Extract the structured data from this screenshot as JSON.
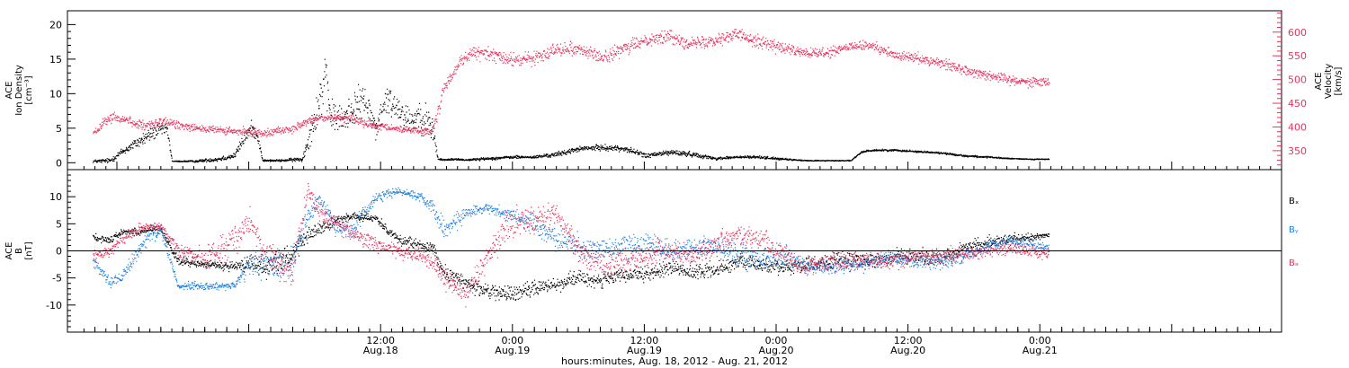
{
  "chart_data": [
    {
      "type": "scatter",
      "panel": "top",
      "ylabel_left": [
        "ACE",
        "Ion Density",
        "[cm⁻³]"
      ],
      "ylabel_right": [
        "ACE",
        "Velocity",
        "[km/s]"
      ],
      "left_ticks": [
        "0",
        "5",
        "10",
        "15",
        "20"
      ],
      "right_ticks": [
        "350",
        "400",
        "450",
        "500",
        "550",
        "600"
      ],
      "ylim_left": [
        -1,
        22
      ],
      "ylim_right": [
        310,
        645
      ],
      "series": [
        {
          "color": "#000000",
          "x": [
            0,
            3,
            5,
            7,
            9,
            11,
            13,
            14,
            15,
            18,
            22,
            25,
            27,
            28,
            29,
            30,
            33,
            37,
            40,
            41,
            42,
            44,
            46,
            48,
            50,
            52,
            54,
            56,
            58,
            60,
            61,
            62,
            64,
            66,
            70,
            74,
            78,
            82,
            86,
            90,
            94,
            98,
            102,
            106,
            110,
            114,
            118,
            122,
            126,
            130,
            134,
            136,
            138,
            142,
            146,
            150,
            154,
            158,
            162,
            166,
            169
          ],
          "y": [
            0.2,
            0.3,
            1.5,
            2.5,
            3.5,
            4.5,
            5.0,
            0.2,
            0.2,
            0.2,
            0.5,
            1.0,
            4.0,
            5.0,
            4.0,
            0.3,
            0.3,
            0.5,
            9.0,
            12,
            7.0,
            6.0,
            8.0,
            9.0,
            5.0,
            9.0,
            8.0,
            6.0,
            7.0,
            5.0,
            0.5,
            0.4,
            0.5,
            0.4,
            0.6,
            0.8,
            0.8,
            1.2,
            2.0,
            2.2,
            2.0,
            1.0,
            1.5,
            1.2,
            0.6,
            0.8,
            0.8,
            0.5,
            0.3,
            0.3,
            0.3,
            1.6,
            1.8,
            1.8,
            1.6,
            1.4,
            1.0,
            0.8,
            0.6,
            0.5,
            0.5
          ],
          "spread": [
            0.3,
            0.5,
            0.8,
            1.0,
            1.5,
            1.5,
            1.5,
            0.1,
            0.1,
            0.2,
            0.5,
            0.6,
            1.5,
            1.5,
            1.2,
            0.2,
            0.2,
            0.5,
            5.0,
            5.0,
            3.5,
            3.0,
            3.5,
            3.5,
            3.0,
            3.5,
            3.0,
            3.0,
            3.5,
            3.0,
            0.4,
            0.2,
            0.2,
            0.2,
            0.3,
            0.3,
            0.3,
            0.5,
            0.5,
            0.6,
            0.6,
            0.5,
            0.6,
            0.5,
            0.3,
            0.3,
            0.3,
            0.2,
            0.1,
            0.1,
            0.1,
            0.2,
            0.2,
            0.2,
            0.2,
            0.2,
            0.2,
            0.2,
            0.1,
            0.1,
            0.1
          ]
        },
        {
          "color": "#e8335e",
          "x": [
            0,
            3,
            6,
            9,
            12,
            15,
            20,
            25,
            30,
            35,
            40,
            45,
            50,
            55,
            60,
            61,
            62,
            63,
            65,
            67,
            70,
            74,
            78,
            82,
            86,
            90,
            94,
            98,
            102,
            106,
            110,
            114,
            118,
            122,
            126,
            130,
            134,
            138,
            142,
            146,
            150,
            154,
            158,
            162,
            166,
            169
          ],
          "y": [
            385,
            420,
            415,
            400,
            410,
            405,
            395,
            390,
            388,
            395,
            420,
            420,
            400,
            395,
            390,
            430,
            480,
            500,
            540,
            555,
            555,
            540,
            545,
            565,
            565,
            545,
            565,
            585,
            590,
            575,
            585,
            595,
            580,
            565,
            555,
            555,
            570,
            570,
            550,
            545,
            535,
            520,
            510,
            500,
            495,
            495
          ],
          "spread": [
            15,
            15,
            15,
            15,
            15,
            15,
            12,
            12,
            12,
            12,
            12,
            12,
            12,
            12,
            12,
            20,
            20,
            15,
            20,
            20,
            20,
            20,
            20,
            20,
            20,
            20,
            20,
            20,
            20,
            20,
            20,
            20,
            20,
            20,
            15,
            15,
            15,
            15,
            15,
            15,
            15,
            15,
            15,
            15,
            15,
            15
          ]
        }
      ]
    },
    {
      "type": "scatter",
      "panel": "bottom",
      "ylabel_left": [
        "ACE",
        "B",
        "[nT]"
      ],
      "left_ticks": [
        "-10",
        "-5",
        "0",
        "5",
        "10"
      ],
      "ylim": [
        -15,
        15
      ],
      "legend": [
        "Bₓ",
        "Bᵧ",
        "Bₔ"
      ],
      "series": [
        {
          "name": "Bₓ",
          "color": "#000000",
          "x": [
            0,
            3,
            5,
            8,
            10,
            12,
            15,
            20,
            25,
            28,
            30,
            35,
            38,
            40,
            43,
            46,
            50,
            54,
            58,
            60,
            62,
            66,
            70,
            74,
            78,
            82,
            86,
            90,
            94,
            98,
            102,
            106,
            110,
            114,
            118,
            122,
            126,
            130,
            134,
            138,
            142,
            146,
            150,
            154,
            158,
            162,
            166,
            169
          ],
          "y": [
            2.5,
            2.0,
            3.5,
            3.5,
            4.0,
            4.0,
            -2.0,
            -2.5,
            -3.0,
            -2.0,
            -3.0,
            -1.0,
            3.0,
            4.0,
            5.5,
            6.5,
            6.0,
            2.0,
            1.0,
            0.5,
            -4.0,
            -6.0,
            -7.5,
            -8.0,
            -7.0,
            -6.0,
            -5.0,
            -5.5,
            -4.5,
            -4.5,
            -3.0,
            -4.0,
            -3.5,
            -2.0,
            -2.5,
            -3.0,
            -2.5,
            -2.0,
            -1.5,
            -2.0,
            -1.0,
            -1.0,
            -1.5,
            0.5,
            1.5,
            2.0,
            2.5,
            3.0
          ],
          "spread": [
            1.0,
            1.0,
            1.0,
            1.0,
            1.0,
            1.0,
            1.2,
            1.2,
            1.2,
            2.5,
            3.0,
            3.0,
            2.0,
            2.0,
            1.2,
            1.0,
            1.0,
            1.5,
            1.5,
            1.5,
            2.0,
            2.0,
            2.0,
            2.0,
            2.0,
            2.0,
            2.0,
            2.0,
            2.0,
            2.0,
            2.0,
            2.0,
            2.0,
            2.0,
            2.0,
            2.0,
            2.0,
            2.0,
            2.0,
            2.0,
            2.0,
            2.0,
            2.0,
            2.0,
            1.5,
            1.5,
            1.0,
            1.0
          ]
        },
        {
          "name": "Bᵧ",
          "color": "#1f80e0",
          "x": [
            0,
            3,
            5,
            8,
            10,
            12,
            15,
            20,
            25,
            28,
            30,
            35,
            38,
            40,
            43,
            46,
            50,
            54,
            58,
            60,
            62,
            66,
            70,
            74,
            78,
            82,
            86,
            90,
            94,
            98,
            102,
            106,
            110,
            114,
            118,
            122,
            126,
            130,
            134,
            138,
            142,
            146,
            150,
            154,
            158,
            162,
            166,
            169
          ],
          "y": [
            -2.0,
            -6.0,
            -5.0,
            0.0,
            3.0,
            4.0,
            -6.5,
            -6.5,
            -6.5,
            -2.0,
            -2.0,
            -3.0,
            6.0,
            10.0,
            4.0,
            4.0,
            10.0,
            11.0,
            10.0,
            8.0,
            4.0,
            7.0,
            8.0,
            6.5,
            5.0,
            2.0,
            1.0,
            0.0,
            1.0,
            1.5,
            0.0,
            0.5,
            1.0,
            -0.5,
            -2.0,
            -1.0,
            -3.0,
            -3.0,
            -2.5,
            -2.0,
            -1.5,
            -2.0,
            -2.0,
            -1.0,
            0.5,
            2.0,
            1.0,
            0.5
          ],
          "spread": [
            1.5,
            1.5,
            1.5,
            2.0,
            2.0,
            2.0,
            1.0,
            1.0,
            1.0,
            4.0,
            4.0,
            4.0,
            3.0,
            2.5,
            2.5,
            2.5,
            1.5,
            1.0,
            1.0,
            2.5,
            3.0,
            1.5,
            1.5,
            2.0,
            2.5,
            3.0,
            3.0,
            3.0,
            3.0,
            3.0,
            3.0,
            3.0,
            3.0,
            3.0,
            3.0,
            3.0,
            2.0,
            2.0,
            2.0,
            2.0,
            2.0,
            2.0,
            2.0,
            2.0,
            1.5,
            1.5,
            1.5,
            1.0
          ]
        },
        {
          "name": "Bₔ",
          "color": "#e8335e",
          "x": [
            0,
            3,
            5,
            8,
            10,
            12,
            15,
            20,
            25,
            28,
            30,
            35,
            38,
            40,
            43,
            46,
            50,
            54,
            58,
            60,
            62,
            66,
            70,
            74,
            78,
            82,
            86,
            90,
            94,
            98,
            102,
            106,
            110,
            114,
            118,
            122,
            126,
            130,
            134,
            138,
            142,
            146,
            150,
            154,
            158,
            162,
            166,
            169
          ],
          "y": [
            -1.0,
            0.0,
            2.0,
            4.0,
            4.5,
            4.5,
            0.0,
            -1.5,
            2.0,
            6.0,
            0.0,
            -4.0,
            11.0,
            7.0,
            5.0,
            3.0,
            1.0,
            0.0,
            -1.0,
            -2.0,
            -5.0,
            -8.0,
            0.0,
            5.0,
            6.0,
            7.0,
            0.0,
            -3.0,
            -2.0,
            -1.0,
            0.0,
            -1.0,
            1.0,
            3.0,
            2.0,
            -1.0,
            -3.0,
            -2.0,
            -2.0,
            -1.5,
            -2.0,
            -1.0,
            -1.0,
            -0.5,
            0.0,
            0.5,
            0.0,
            -1.0
          ],
          "spread": [
            1.5,
            1.5,
            1.5,
            1.5,
            1.0,
            1.0,
            2.0,
            3.0,
            4.0,
            3.0,
            4.0,
            4.0,
            2.5,
            2.5,
            2.0,
            2.0,
            2.0,
            2.0,
            2.0,
            2.5,
            3.0,
            3.0,
            4.0,
            4.0,
            3.5,
            3.0,
            4.0,
            3.0,
            3.0,
            3.0,
            3.0,
            3.0,
            3.0,
            3.0,
            3.0,
            3.0,
            2.5,
            2.5,
            2.5,
            2.0,
            2.0,
            2.0,
            2.0,
            2.0,
            1.5,
            1.5,
            1.5,
            1.5
          ]
        }
      ]
    }
  ],
  "x_axis": {
    "xlim_hours": [
      -16.5,
      94
    ],
    "ticks": [
      {
        "hours": 12,
        "line1": "12:00",
        "line2": "Aug.18"
      },
      {
        "hours": 24,
        "line1": "0:00",
        "line2": "Aug.19"
      },
      {
        "hours": 36,
        "line1": "12:00",
        "line2": "Aug.19"
      },
      {
        "hours": 48,
        "line1": "0:00",
        "line2": "Aug.20"
      },
      {
        "hours": 60,
        "line1": "12:00",
        "line2": "Aug.20"
      },
      {
        "hours": 72,
        "line1": "0:00",
        "line2": "Aug.21"
      }
    ],
    "title": "hours:minutes, Aug. 18, 2012 - Aug. 21, 2012"
  },
  "colors": {
    "axis": "#000000",
    "velocity_axis": "#e8335e",
    "bx": "#000000",
    "by": "#1f80e0",
    "bz": "#e8335e"
  }
}
